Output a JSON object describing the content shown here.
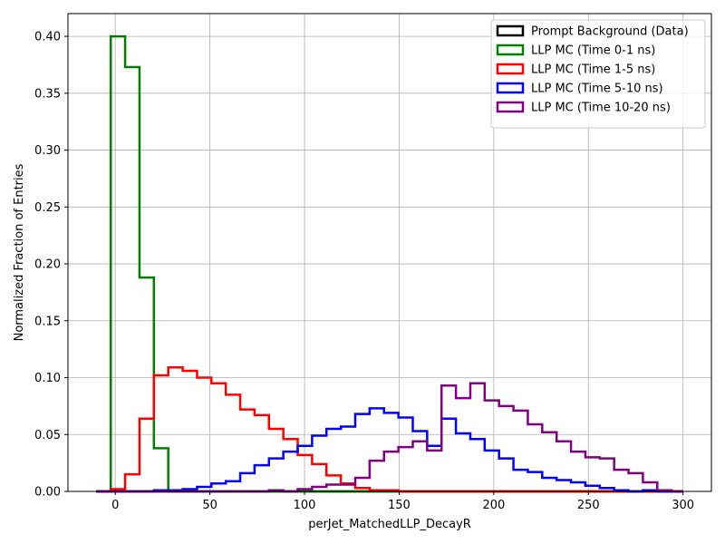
{
  "chart_data": {
    "type": "histogram",
    "title": "",
    "xlabel": "perJet_MatchedLLP_DecayR",
    "ylabel": "Normalized Fraction of Entries",
    "xlim": [
      -25,
      315
    ],
    "ylim": [
      0,
      0.42
    ],
    "xticks": [
      0,
      50,
      100,
      150,
      200,
      250,
      300
    ],
    "yticks": [
      0.0,
      0.05,
      0.1,
      0.15,
      0.2,
      0.25,
      0.3,
      0.35,
      0.4
    ],
    "xtick_labels": [
      "0",
      "50",
      "100",
      "150",
      "200",
      "250",
      "300"
    ],
    "ytick_labels": [
      "0.00",
      "0.05",
      "0.10",
      "0.15",
      "0.20",
      "0.25",
      "0.30",
      "0.35",
      "0.40"
    ],
    "grid": true,
    "legend_position": "upper right",
    "bin_edges": [
      -10,
      -2.4,
      5.2,
      12.8,
      20.4,
      28,
      35.6,
      43.2,
      50.8,
      58.4,
      66,
      73.6,
      81.2,
      88.8,
      96.4,
      104,
      111.6,
      119.2,
      126.8,
      134.4,
      142,
      149.6,
      157.2,
      164.8,
      172.4,
      180,
      187.6,
      195.2,
      202.8,
      210.4,
      218,
      225.6,
      233.2,
      240.8,
      248.4,
      256,
      263.6,
      271.2,
      278.8,
      286.4,
      294,
      300
    ],
    "series": [
      {
        "name": "Prompt Background (Data)",
        "color": "#000000",
        "values": [
          0,
          0,
          0,
          0,
          0,
          0,
          0,
          0,
          0,
          0,
          0,
          0,
          0,
          0,
          0,
          0,
          0,
          0,
          0,
          0,
          0,
          0,
          0,
          0,
          0,
          0,
          0,
          0,
          0,
          0,
          0,
          0,
          0,
          0,
          0,
          0,
          0,
          0,
          0,
          0,
          0
        ]
      },
      {
        "name": "LLP MC (Time 0-1 ns)",
        "color": "#008000",
        "values": [
          0,
          0.4,
          0.373,
          0.188,
          0.038,
          0,
          0,
          0,
          0,
          0,
          0,
          0,
          0,
          0,
          0,
          0,
          0,
          0,
          0,
          0,
          0,
          0,
          0,
          0,
          0,
          0,
          0,
          0,
          0,
          0,
          0,
          0,
          0,
          0,
          0,
          0,
          0,
          0,
          0,
          0,
          0
        ]
      },
      {
        "name": "LLP MC (Time 1-5 ns)",
        "color": "#ff0000",
        "values": [
          0,
          0.002,
          0.015,
          0.064,
          0.102,
          0.109,
          0.106,
          0.1,
          0.095,
          0.085,
          0.072,
          0.067,
          0.055,
          0.046,
          0.032,
          0.024,
          0.014,
          0.007,
          0.003,
          0.001,
          0.001,
          0,
          0,
          0,
          0,
          0,
          0,
          0,
          0,
          0,
          0,
          0,
          0,
          0,
          0,
          0,
          0,
          0,
          0,
          0,
          0
        ]
      },
      {
        "name": "LLP MC (Time 5-10 ns)",
        "color": "#0000ff",
        "values": [
          0,
          0,
          0,
          0,
          0.001,
          0.001,
          0.002,
          0.004,
          0.007,
          0.009,
          0.016,
          0.023,
          0.029,
          0.035,
          0.04,
          0.049,
          0.055,
          0.057,
          0.068,
          0.073,
          0.069,
          0.065,
          0.053,
          0.04,
          0.064,
          0.051,
          0.046,
          0.036,
          0.029,
          0.019,
          0.017,
          0.012,
          0.01,
          0.008,
          0.005,
          0.003,
          0.001,
          0,
          0.001,
          0,
          0
        ]
      },
      {
        "name": "LLP MC (Time 10-20 ns)",
        "color": "#800080",
        "values": [
          0,
          0,
          0,
          0,
          0,
          0,
          0,
          0,
          0,
          0,
          0,
          0,
          0.001,
          0,
          0.002,
          0.004,
          0.006,
          0.006,
          0.012,
          0.027,
          0.035,
          0.039,
          0.044,
          0.036,
          0.093,
          0.082,
          0.095,
          0.08,
          0.075,
          0.071,
          0.059,
          0.052,
          0.044,
          0.035,
          0.03,
          0.029,
          0.019,
          0.016,
          0.008,
          0.001,
          0
        ]
      }
    ]
  }
}
